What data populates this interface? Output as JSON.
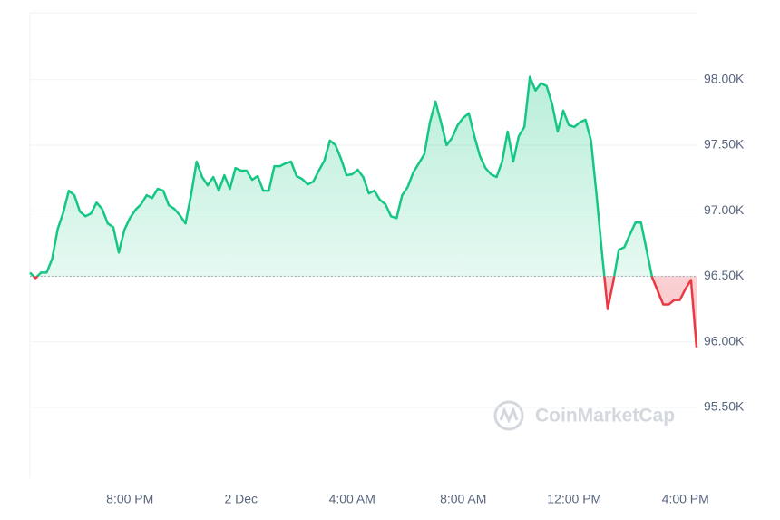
{
  "chart_data": {
    "type": "line",
    "watermark": "CoinMarketCap",
    "color": "#16c784",
    "down_color": "#ea3943",
    "baseline": 96500,
    "grid": true,
    "ylim": [
      94960,
      98510
    ],
    "yticks": [
      {
        "value": 95500,
        "label": "95.50K"
      },
      {
        "value": 96000,
        "label": "96.00K"
      },
      {
        "value": 96500,
        "label": "96.50K"
      },
      {
        "value": 97000,
        "label": "97.00K"
      },
      {
        "value": 97500,
        "label": "97.50K"
      },
      {
        "value": 98000,
        "label": "98.00K"
      }
    ],
    "categories": [
      null,
      null,
      null,
      null,
      null,
      null,
      null,
      null,
      null,
      null,
      null,
      null,
      null,
      null,
      null,
      null,
      null,
      null,
      "8:00 PM",
      null,
      null,
      null,
      null,
      null,
      null,
      null,
      null,
      null,
      null,
      null,
      null,
      null,
      null,
      null,
      null,
      null,
      null,
      null,
      "2 Dec",
      null,
      null,
      null,
      null,
      null,
      null,
      null,
      null,
      null,
      null,
      null,
      null,
      null,
      null,
      null,
      null,
      null,
      null,
      null,
      "4:00 AM",
      null,
      null,
      null,
      null,
      null,
      null,
      null,
      null,
      null,
      null,
      null,
      null,
      null,
      null,
      null,
      null,
      null,
      null,
      null,
      "8:00 AM",
      null,
      null,
      null,
      null,
      null,
      null,
      null,
      null,
      null,
      null,
      null,
      null,
      null,
      null,
      null,
      null,
      null,
      null,
      null,
      "12:00 PM",
      null,
      null,
      null,
      null,
      null,
      null,
      null,
      null,
      null,
      null,
      null,
      null,
      null,
      null,
      null,
      null,
      null,
      null,
      null,
      "4:00 PM",
      null,
      null
    ],
    "values": [
      96528,
      96486,
      96528,
      96528,
      96632,
      96861,
      96986,
      97153,
      97118,
      96993,
      96958,
      96979,
      97062,
      97014,
      96903,
      96875,
      96681,
      96854,
      96944,
      97007,
      97049,
      97118,
      97097,
      97167,
      97153,
      97042,
      97014,
      96965,
      96903,
      97118,
      97375,
      97257,
      97194,
      97257,
      97153,
      97271,
      97167,
      97326,
      97306,
      97306,
      97236,
      97264,
      97153,
      97153,
      97340,
      97340,
      97361,
      97375,
      97264,
      97243,
      97201,
      97222,
      97306,
      97382,
      97535,
      97500,
      97396,
      97271,
      97278,
      97313,
      97257,
      97132,
      97153,
      97083,
      97049,
      96958,
      96944,
      97118,
      97181,
      97292,
      97361,
      97431,
      97674,
      97833,
      97674,
      97500,
      97556,
      97653,
      97708,
      97743,
      97569,
      97417,
      97326,
      97278,
      97257,
      97375,
      97604,
      97375,
      97569,
      97639,
      98021,
      97917,
      97972,
      97951,
      97813,
      97604,
      97764,
      97653,
      97639,
      97674,
      97694,
      97535,
      97118,
      96667,
      96250,
      96458,
      96701,
      96722,
      96819,
      96910,
      96910,
      96701,
      96493,
      96389,
      96285,
      96285,
      96319,
      96319,
      96403,
      96472,
      95958
    ]
  }
}
